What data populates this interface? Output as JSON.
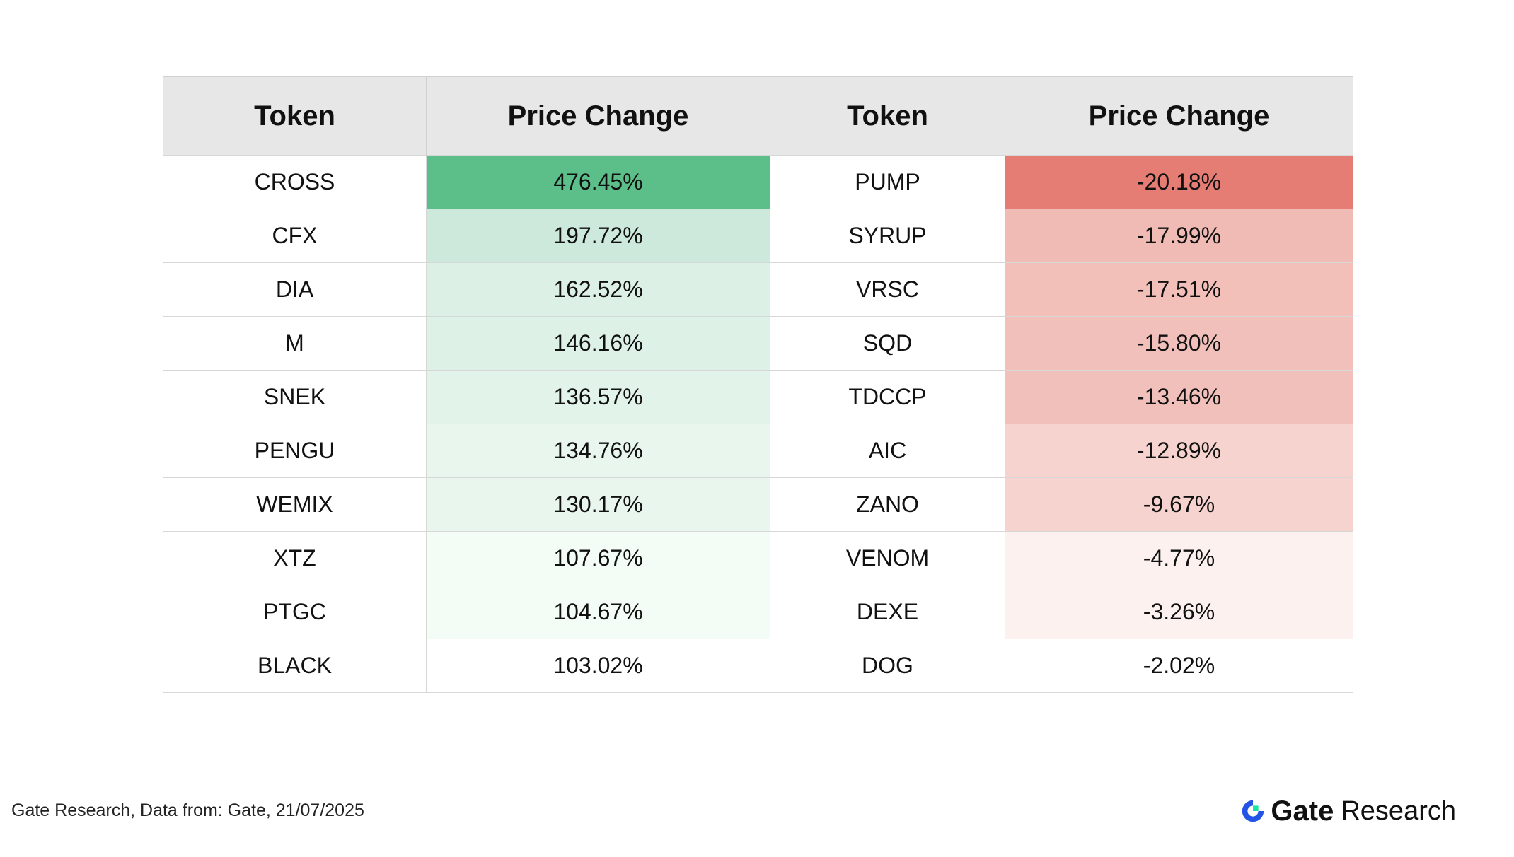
{
  "chart_data": {
    "type": "table",
    "columns": [
      "Token",
      "Price Change",
      "Token",
      "Price Change"
    ],
    "gainers": [
      {
        "token": "CROSS",
        "change": "476.45%"
      },
      {
        "token": "CFX",
        "change": "197.72%"
      },
      {
        "token": "DIA",
        "change": "162.52%"
      },
      {
        "token": "M",
        "change": "146.16%"
      },
      {
        "token": "SNEK",
        "change": "136.57%"
      },
      {
        "token": "PENGU",
        "change": "134.76%"
      },
      {
        "token": "WEMIX",
        "change": "130.17%"
      },
      {
        "token": "XTZ",
        "change": "107.67%"
      },
      {
        "token": "PTGC",
        "change": "104.67%"
      },
      {
        "token": "BLACK",
        "change": "103.02%"
      }
    ],
    "losers": [
      {
        "token": "PUMP",
        "change": "-20.18%"
      },
      {
        "token": "SYRUP",
        "change": "-17.99%"
      },
      {
        "token": "VRSC",
        "change": "-17.51%"
      },
      {
        "token": "SQD",
        "change": "-15.80%"
      },
      {
        "token": "TDCCP",
        "change": "-13.46%"
      },
      {
        "token": "AIC",
        "change": "-12.89%"
      },
      {
        "token": "ZANO",
        "change": "-9.67%"
      },
      {
        "token": "VENOM",
        "change": "-4.77%"
      },
      {
        "token": "DEXE",
        "change": "-3.26%"
      },
      {
        "token": "DOG",
        "change": "-2.02%"
      }
    ],
    "gain_colors": [
      "#5cbf8a",
      "#cce9dc",
      "#dcf0e5",
      "#ddf1e6",
      "#e2f3e9",
      "#e8f6ed",
      "#e9f6ee",
      "#f4fcf6",
      "#f4fcf6",
      "#ffffff"
    ],
    "loss_colors": [
      "#e57d74",
      "#f1bbb5",
      "#f2bfb9",
      "#f2c0ba",
      "#f2c0ba",
      "#f6d3ce",
      "#f6d3ce",
      "#fcf1ef",
      "#fcf1ef",
      "#ffffff"
    ]
  },
  "footer": {
    "source": "Gate Research, Data from: Gate, 21/07/2025",
    "brand_gate": "Gate",
    "brand_research": "Research",
    "brand_colors": {
      "blue": "#2354e6",
      "green": "#17e6a1"
    }
  }
}
